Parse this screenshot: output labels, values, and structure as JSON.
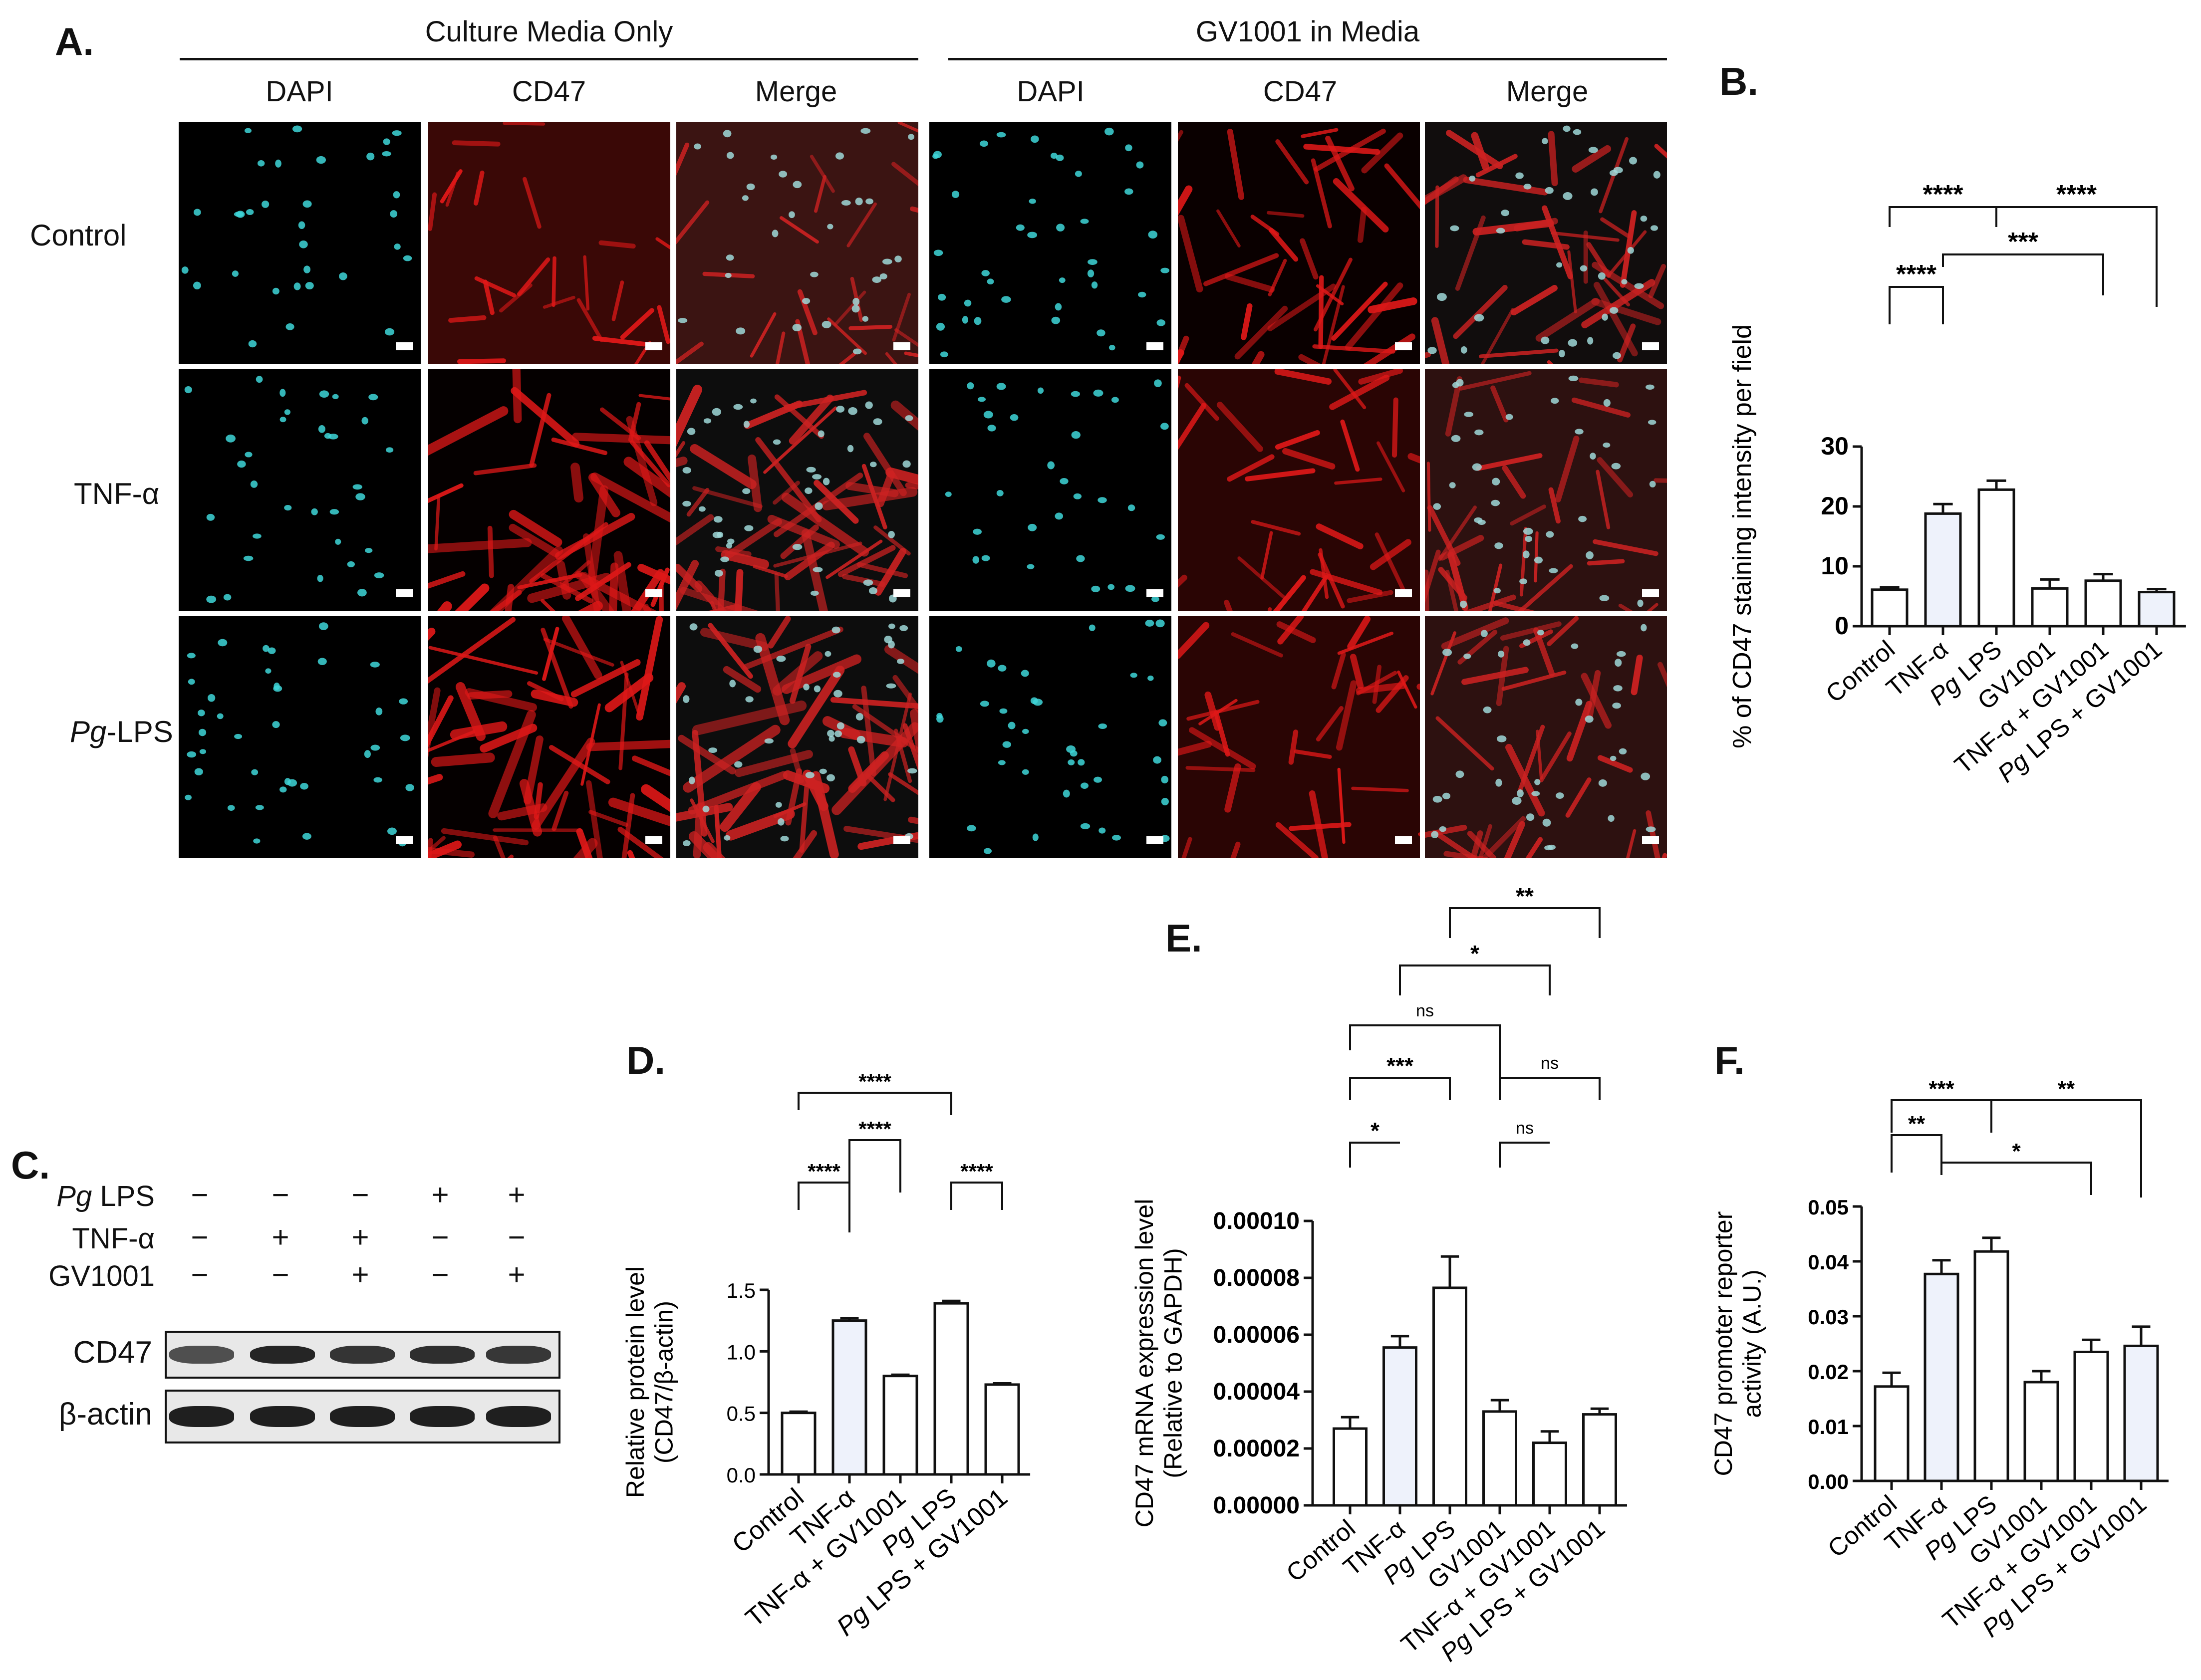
{
  "panelA": {
    "letter": "A.",
    "group_left": "Culture Media Only",
    "group_right": "GV1001 in Media",
    "columns": [
      "DAPI",
      "CD47",
      "Merge",
      "DAPI",
      "CD47",
      "Merge"
    ],
    "rows": [
      {
        "prefix": "",
        "rest": "Control"
      },
      {
        "prefix": "",
        "rest": "TNF-α"
      },
      {
        "prefix": "Pg",
        "rest": "-LPS"
      }
    ],
    "colors": {
      "nuclei": "#3ed6d8",
      "cd47": "#e01818"
    }
  },
  "panelC": {
    "letter": "C.",
    "treatments": [
      {
        "label_italic": "Pg",
        "label": " LPS",
        "signs": [
          "−",
          "−",
          "−",
          "+",
          "+"
        ]
      },
      {
        "label_italic": "",
        "label": "TNF-α",
        "signs": [
          "−",
          "+",
          "+",
          "−",
          "−"
        ]
      },
      {
        "label_italic": "",
        "label": "GV1001",
        "signs": [
          "−",
          "−",
          "+",
          "−",
          "+"
        ]
      }
    ],
    "blots": [
      "CD47",
      "β-actin"
    ]
  },
  "chart_data": [
    {
      "panel": "B.",
      "type": "bar",
      "ylabel": "% of CD47 staining intensity per field",
      "categories": [
        "Control",
        "TNF-α",
        "Pg LPS",
        "GV1001",
        "TNF-α + GV1001",
        "Pg LPS + GV1001"
      ],
      "values": [
        6.1,
        18.8,
        22.8,
        6.3,
        7.6,
        5.7
      ],
      "errors": [
        0.4,
        1.6,
        1.5,
        1.5,
        1.1,
        0.5
      ],
      "ylim": [
        0,
        30
      ],
      "yticks": [
        0,
        10,
        20,
        30
      ],
      "significance": [
        {
          "from": 0,
          "to": 1,
          "label": "****"
        },
        {
          "from": 0,
          "to": 2,
          "label": "****"
        },
        {
          "from": 1,
          "to": 4,
          "label": "***"
        },
        {
          "from": 2,
          "to": 5,
          "label": "****"
        }
      ]
    },
    {
      "panel": "D.",
      "type": "bar",
      "ylabel": "Relative protein level (CD47/β-actin)",
      "categories": [
        "Control",
        "TNF-α",
        "TNF-α + GV1001",
        "Pg LPS",
        "Pg LPS + GV1001"
      ],
      "values": [
        0.5,
        1.25,
        0.8,
        1.39,
        0.73
      ],
      "errors": [
        0.01,
        0.02,
        0.01,
        0.02,
        0.01
      ],
      "ylim": [
        0,
        1.5
      ],
      "yticks": [
        0.0,
        0.5,
        1.0,
        1.5
      ],
      "significance": [
        {
          "from": 0,
          "to": 1,
          "label": "****"
        },
        {
          "from": 1,
          "to": 2,
          "label": "****"
        },
        {
          "from": 0,
          "to": 3,
          "label": "****"
        },
        {
          "from": 3,
          "to": 4,
          "label": "****"
        }
      ]
    },
    {
      "panel": "E.",
      "type": "bar",
      "ylabel": "CD47 mRNA expression level (Relative to GAPDH)",
      "categories": [
        "Control",
        "TNF-α",
        "Pg LPS",
        "GV1001",
        "TNF-α + GV1001",
        "Pg LPS + GV1001"
      ],
      "values": [
        2.7e-05,
        5.55e-05,
        7.65e-05,
        3.3e-05,
        2.2e-05,
        3.2e-05
      ],
      "errors": [
        4e-06,
        4e-06,
        1.1e-05,
        4e-06,
        4e-06,
        2e-06
      ],
      "ylim": [
        0,
        0.0001
      ],
      "yticks": [
        0,
        2e-05,
        4e-05,
        6e-05,
        8e-05,
        0.0001
      ],
      "significance": [
        {
          "from": 0,
          "to": 1,
          "label": "*"
        },
        {
          "from": 0,
          "to": 2,
          "label": "***"
        },
        {
          "from": 0,
          "to": 3,
          "label": "ns"
        },
        {
          "from": 3,
          "to": 4,
          "label": "ns"
        },
        {
          "from": 3,
          "to": 5,
          "label": "ns"
        },
        {
          "from": 1,
          "to": 4,
          "label": "*"
        },
        {
          "from": 2,
          "to": 5,
          "label": "**"
        }
      ]
    },
    {
      "panel": "F.",
      "type": "bar",
      "ylabel": "CD47 promoter reporter activity (A.U.)",
      "categories": [
        "Control",
        "TNF-α",
        "Pg LPS",
        "GV1001",
        "TNF-α + GV1001",
        "Pg LPS + GV1001"
      ],
      "values": [
        0.0172,
        0.0377,
        0.0418,
        0.018,
        0.0235,
        0.0246
      ],
      "errors": [
        0.0025,
        0.0025,
        0.0025,
        0.002,
        0.0022,
        0.0035
      ],
      "ylim": [
        0,
        0.05
      ],
      "yticks": [
        0,
        0.01,
        0.02,
        0.03,
        0.04,
        0.05
      ],
      "significance": [
        {
          "from": 0,
          "to": 1,
          "label": "**"
        },
        {
          "from": 0,
          "to": 2,
          "label": "***"
        },
        {
          "from": 1,
          "to": 4,
          "label": "*"
        },
        {
          "from": 2,
          "to": 5,
          "label": "**"
        }
      ]
    }
  ]
}
